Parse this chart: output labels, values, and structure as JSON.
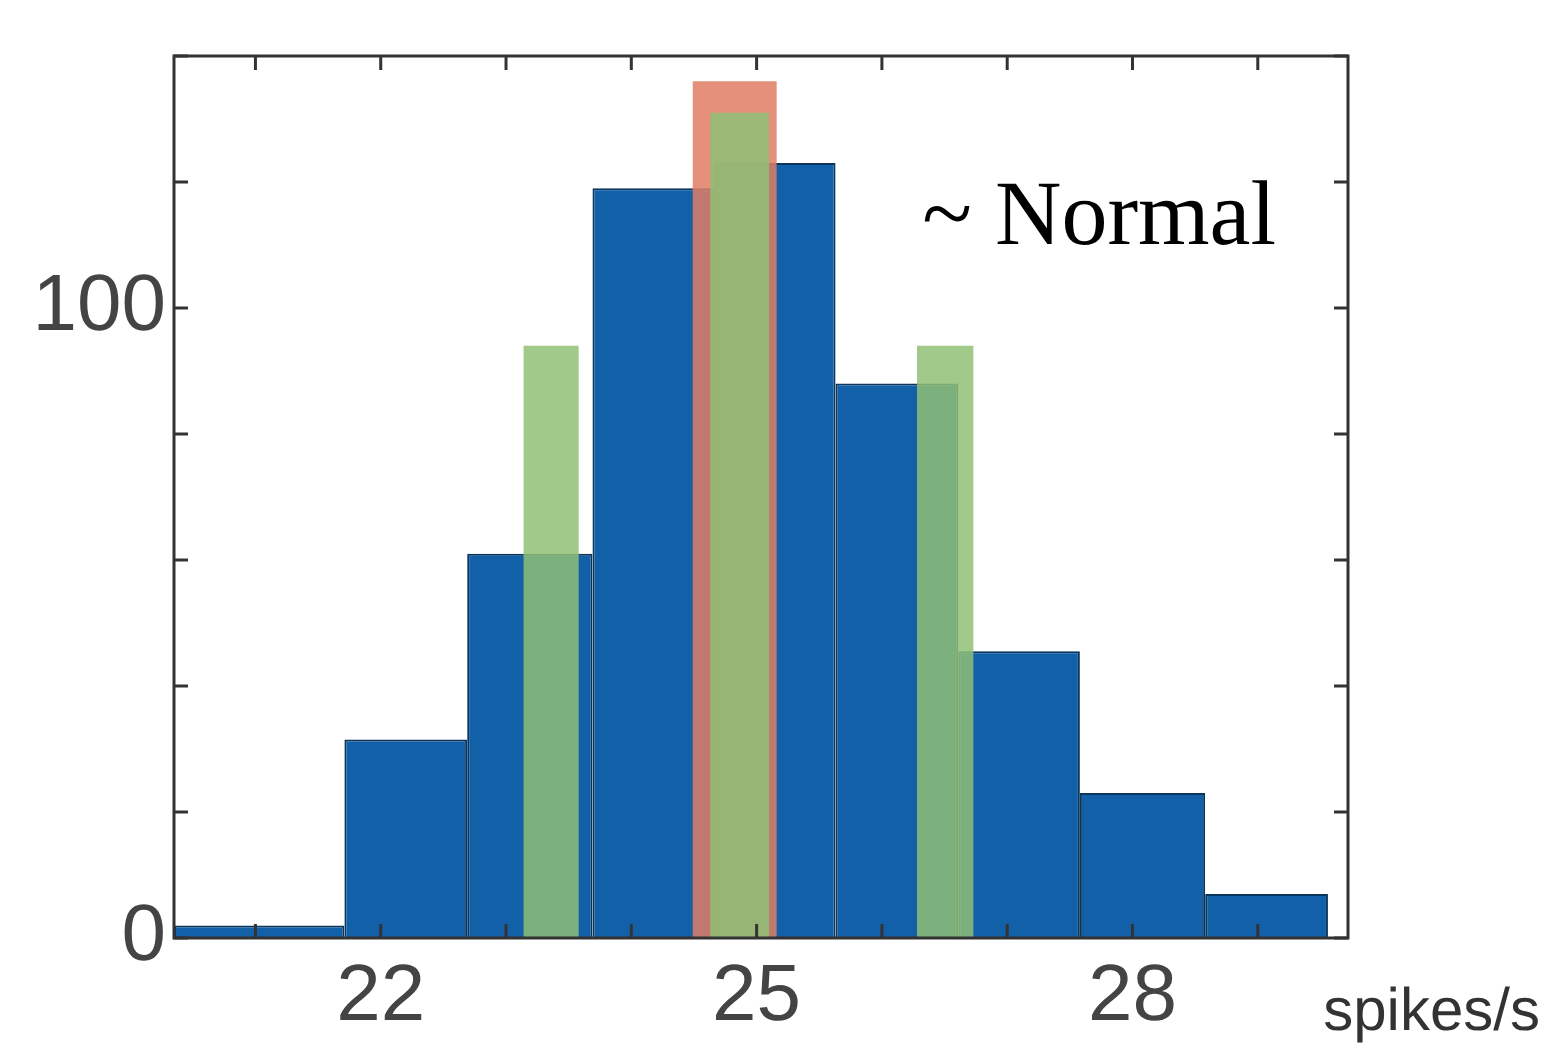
{
  "chart_data": {
    "type": "histogram",
    "xlabel": "spikes/s",
    "annotations": [
      "~ Normal"
    ],
    "xlim": [
      20.35,
      29.72
    ],
    "ylim": [
      0,
      140
    ],
    "xticks": [
      {
        "value": 21,
        "label": null
      },
      22,
      {
        "value": 23,
        "label": null
      },
      {
        "value": 24,
        "label": null
      },
      25,
      {
        "value": 26,
        "label": null
      },
      {
        "value": 27,
        "label": null
      },
      28,
      {
        "value": 29,
        "label": null
      }
    ],
    "yticks": [
      0,
      {
        "value": 20,
        "label": null
      },
      {
        "value": 40,
        "label": null
      },
      {
        "value": 60,
        "label": null
      },
      {
        "value": 80,
        "label": null
      },
      100,
      {
        "value": 120,
        "label": null
      },
      {
        "value": 140,
        "label": null
      }
    ],
    "grid": false,
    "legend": false,
    "color": "#1260a8",
    "bins": [
      20.35,
      21.71,
      22.69,
      23.69,
      24.66,
      25.63,
      26.61,
      27.58,
      28.58,
      29.56
    ],
    "values": [
      2,
      31.5,
      61,
      119,
      123,
      88,
      45.5,
      23,
      7
    ],
    "series": [
      {
        "type": "histogram",
        "color": "#e07c64",
        "bins": [
          24.49,
          25.16
        ],
        "values": [
          136
        ]
      },
      {
        "type": "histogram",
        "color": "#8fbf76",
        "bins": [
          23.14,
          23.58,
          24.63,
          25.1,
          26.28,
          26.73
        ],
        "values": [
          94,
          null,
          131,
          null,
          94
        ]
      }
    ]
  }
}
